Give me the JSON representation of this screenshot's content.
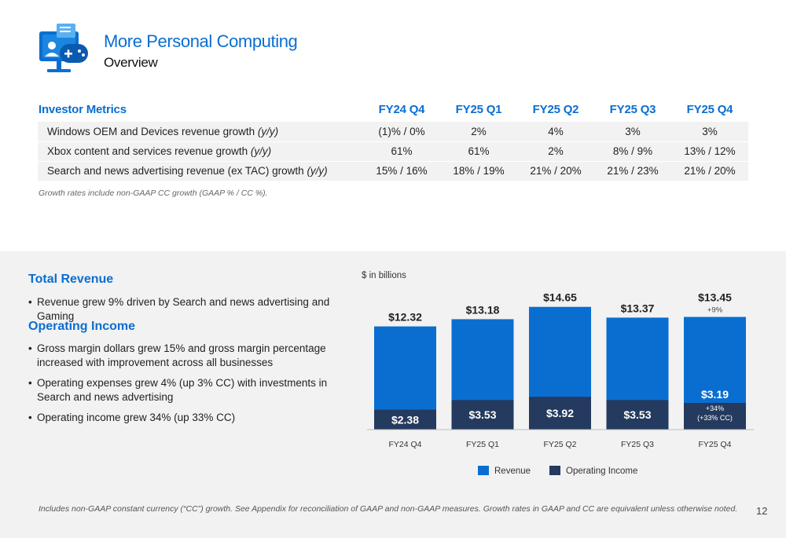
{
  "header": {
    "title": "More Personal Computing",
    "subtitle": "Overview"
  },
  "metrics": {
    "header_label": "Investor Metrics",
    "columns": [
      "FY24 Q4",
      "FY25 Q1",
      "FY25 Q2",
      "FY25 Q3",
      "FY25 Q4"
    ],
    "rows": [
      {
        "label": "Windows OEM and Devices revenue growth",
        "suffix": "(y/y)",
        "values": [
          "(1)% / 0%",
          "2%",
          "4%",
          "3%",
          "3%"
        ]
      },
      {
        "label": "Xbox content and services revenue growth",
        "suffix": "(y/y)",
        "values": [
          "61%",
          "61%",
          "2%",
          "8% / 9%",
          "13% / 12%"
        ]
      },
      {
        "label": "Search and news advertising revenue (ex TAC) growth",
        "suffix": "(y/y)",
        "values": [
          "15% / 16%",
          "18% / 19%",
          "21% / 20%",
          "21% / 23%",
          "21% / 20%"
        ]
      }
    ],
    "note": "Growth rates include non-GAAP CC growth (GAAP % / CC %)."
  },
  "commentary": {
    "revenue_heading": "Total Revenue",
    "revenue_bullets": [
      "Revenue grew 9% driven by Search and news advertising and Gaming"
    ],
    "income_heading": "Operating Income",
    "income_bullets": [
      "Gross margin dollars grew 15% and gross margin percentage increased with improvement across all businesses",
      "Operating expenses grew 4% (up 3% CC) with investments in Search and news advertising",
      "Operating income grew 34% (up 33% CC)"
    ]
  },
  "chart_data": {
    "type": "bar",
    "unit_label": "$ in billions",
    "categories": [
      "FY24 Q4",
      "FY25 Q1",
      "FY25 Q2",
      "FY25 Q3",
      "FY25 Q4"
    ],
    "series": [
      {
        "name": "Revenue",
        "values": [
          12.32,
          13.18,
          14.65,
          13.37,
          13.45
        ],
        "labels": [
          "$12.32",
          "$13.18",
          "$14.65",
          "$13.37",
          "$13.45"
        ],
        "color": "#0a6ed1"
      },
      {
        "name": "Operating Income",
        "values": [
          2.38,
          3.53,
          3.92,
          3.53,
          3.19
        ],
        "labels": [
          "$2.38",
          "$3.53",
          "$3.92",
          "$3.53",
          "$3.19"
        ],
        "color": "#243a5e"
      }
    ],
    "annotations": {
      "revenue_growth": "+9%",
      "oi_growth": "+34%",
      "oi_growth_cc": "(+33% CC)"
    },
    "ylim": [
      0,
      15
    ],
    "legend_position": "bottom"
  },
  "footer": {
    "footnote": "Includes non-GAAP constant currency (“CC”) growth. See Appendix for reconciliation of GAAP and non-GAAP measures. Growth rates in GAAP and CC are equivalent unless otherwise noted.",
    "page_number": "12"
  },
  "colors": {
    "accent": "#0a6ed1",
    "dark_navy": "#243a5e",
    "panel_gray": "#f2f2f2"
  },
  "icons": [
    "monitor-gamepad-icon"
  ]
}
